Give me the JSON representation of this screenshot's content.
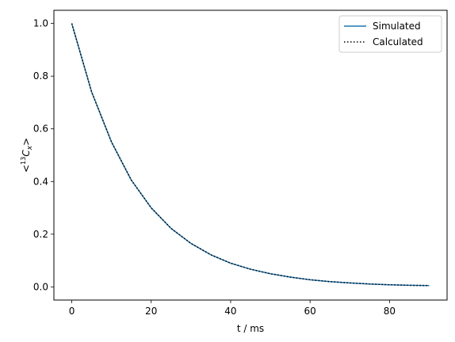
{
  "chart_data": {
    "type": "line",
    "xlabel": "t / ms",
    "ylabel": {
      "prefix": "<",
      "superscript": "13",
      "main": "C",
      "subscript": "x",
      "suffix": ">"
    },
    "xlim": [
      -4.5,
      94.5
    ],
    "ylim": [
      -0.05,
      1.05
    ],
    "xticks": [
      0,
      20,
      40,
      60,
      80
    ],
    "xtick_labels": [
      "0",
      "20",
      "40",
      "60",
      "80"
    ],
    "yticks": [
      0.0,
      0.2,
      0.4,
      0.6,
      0.8,
      1.0
    ],
    "ytick_labels": [
      "0.0",
      "0.2",
      "0.4",
      "0.6",
      "0.8",
      "1.0"
    ],
    "grid": false,
    "legend_position": "top-right",
    "series": [
      {
        "name": "Simulated",
        "color": "#1f77b4",
        "style": "solid",
        "x": [
          0,
          5,
          10,
          15,
          20,
          25,
          30,
          35,
          40,
          45,
          50,
          55,
          60,
          65,
          70,
          75,
          80,
          85,
          90
        ],
        "values": [
          1.0,
          0.74,
          0.55,
          0.405,
          0.3,
          0.222,
          0.165,
          0.122,
          0.09,
          0.067,
          0.05,
          0.037,
          0.027,
          0.02,
          0.015,
          0.011,
          0.008,
          0.006,
          0.005
        ]
      },
      {
        "name": "Calculated",
        "color": "#000000",
        "style": "dotted",
        "x": [
          0,
          5,
          10,
          15,
          20,
          25,
          30,
          35,
          40,
          45,
          50,
          55,
          60,
          65,
          70,
          75,
          80,
          85,
          90
        ],
        "values": [
          1.0,
          0.74,
          0.55,
          0.405,
          0.3,
          0.222,
          0.165,
          0.122,
          0.09,
          0.067,
          0.05,
          0.037,
          0.027,
          0.02,
          0.015,
          0.011,
          0.008,
          0.006,
          0.005
        ]
      }
    ]
  }
}
